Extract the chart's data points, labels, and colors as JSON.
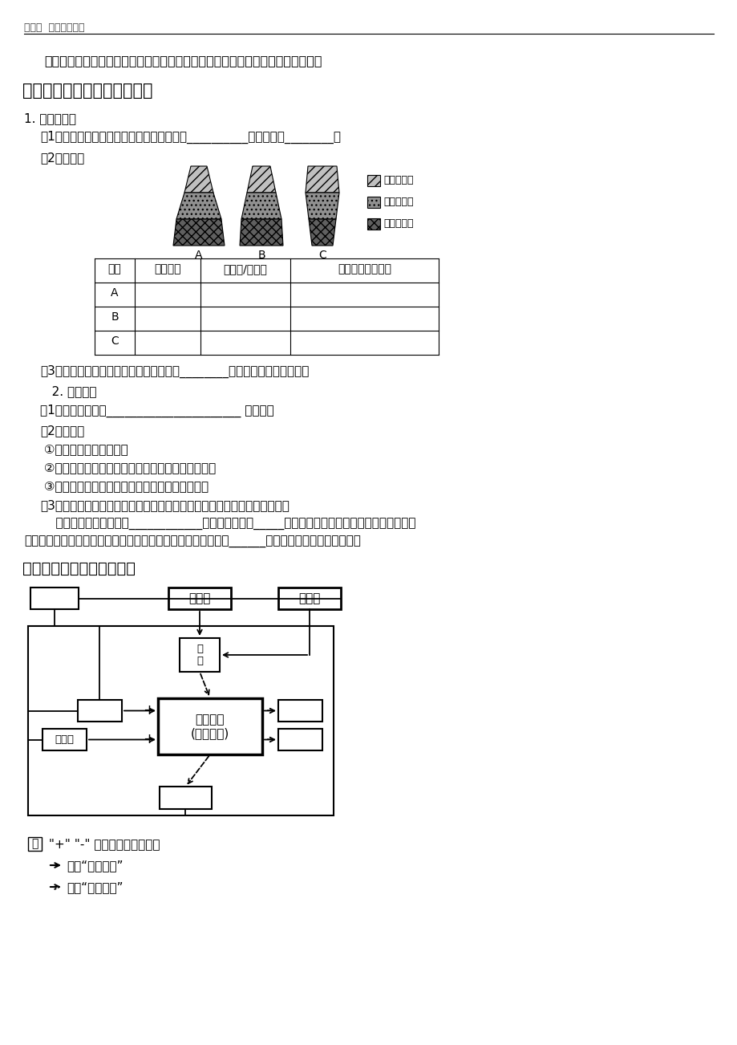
{
  "page_bg": "#ffffff",
  "header_text": "第一章  种群及其动态",
  "line1": "意义：出生率、死亡率、迁入率和迁出率是决定种群大小和种群密度的直接因素。",
  "section4_title": "（四）、年龄结构和性别比例",
  "s1": "1. 年龄结构：",
  "s1_1": "（1）概念：种群的年龄结构是指一个种群中__________个体数目的________。",
  "s1_2": "（2）类型：",
  "legend1": "老年个体数",
  "legend2": "成年个体数",
  "legend3": "幼年个体数",
  "labels_abc": [
    "A",
    "B",
    "C"
  ],
  "table_headers": [
    "种群",
    "所属类型",
    "出生率/死亡率",
    "种群数量变化趋势"
  ],
  "table_rows": [
    "A",
    "B",
    "C"
  ],
  "s1_3": "（3）意义：通过分析种群的年龄结构可以________该种群的数量变化趋势。",
  "s2": "   2. 性别比例",
  "s2_1": "（1）概念：种群中______________________ 的比例。",
  "s2_2": "（2）类型：",
  "s2_2a": " ①雌雄相当型，如人类；",
  "s2_2b": " ②雌多雄少型，如，人工控制的种群（猪、鸡）等；",
  "s2_2c": " ③雌少雄多型，如家白蚁等营社会性生活的动物。",
  "s2_3": "（3）意义：种群的性别比例在一定程度上通过影响出生率间接影响种群密度",
  "s2_3a": "    例如：利用人工合成的____________诱杀某种害虫的_____个体，破坏害虫种群正常的性别比例，就",
  "s2_3b": "会使很多雌性个体不能完成交配，从而使该害虫的种群密度明显______，达到控制害虫数量的目的。",
  "section2_title": "二、种群数量特征间的关系",
  "box_wending": "稳定型",
  "box_shuaitui": "衰退型",
  "box_yuce": "预\n测",
  "box_zhonqun": "种群数量\n(种群密度)",
  "box_qianru": "迁入率",
  "note1": " \"+\" \"-\" 分别表示增加、减少",
  "note2": "表示「直接影响」",
  "note3": "表示「间接影响」",
  "note2_display": "表示“直接影响”",
  "note3_display": "表示“间接影响”"
}
